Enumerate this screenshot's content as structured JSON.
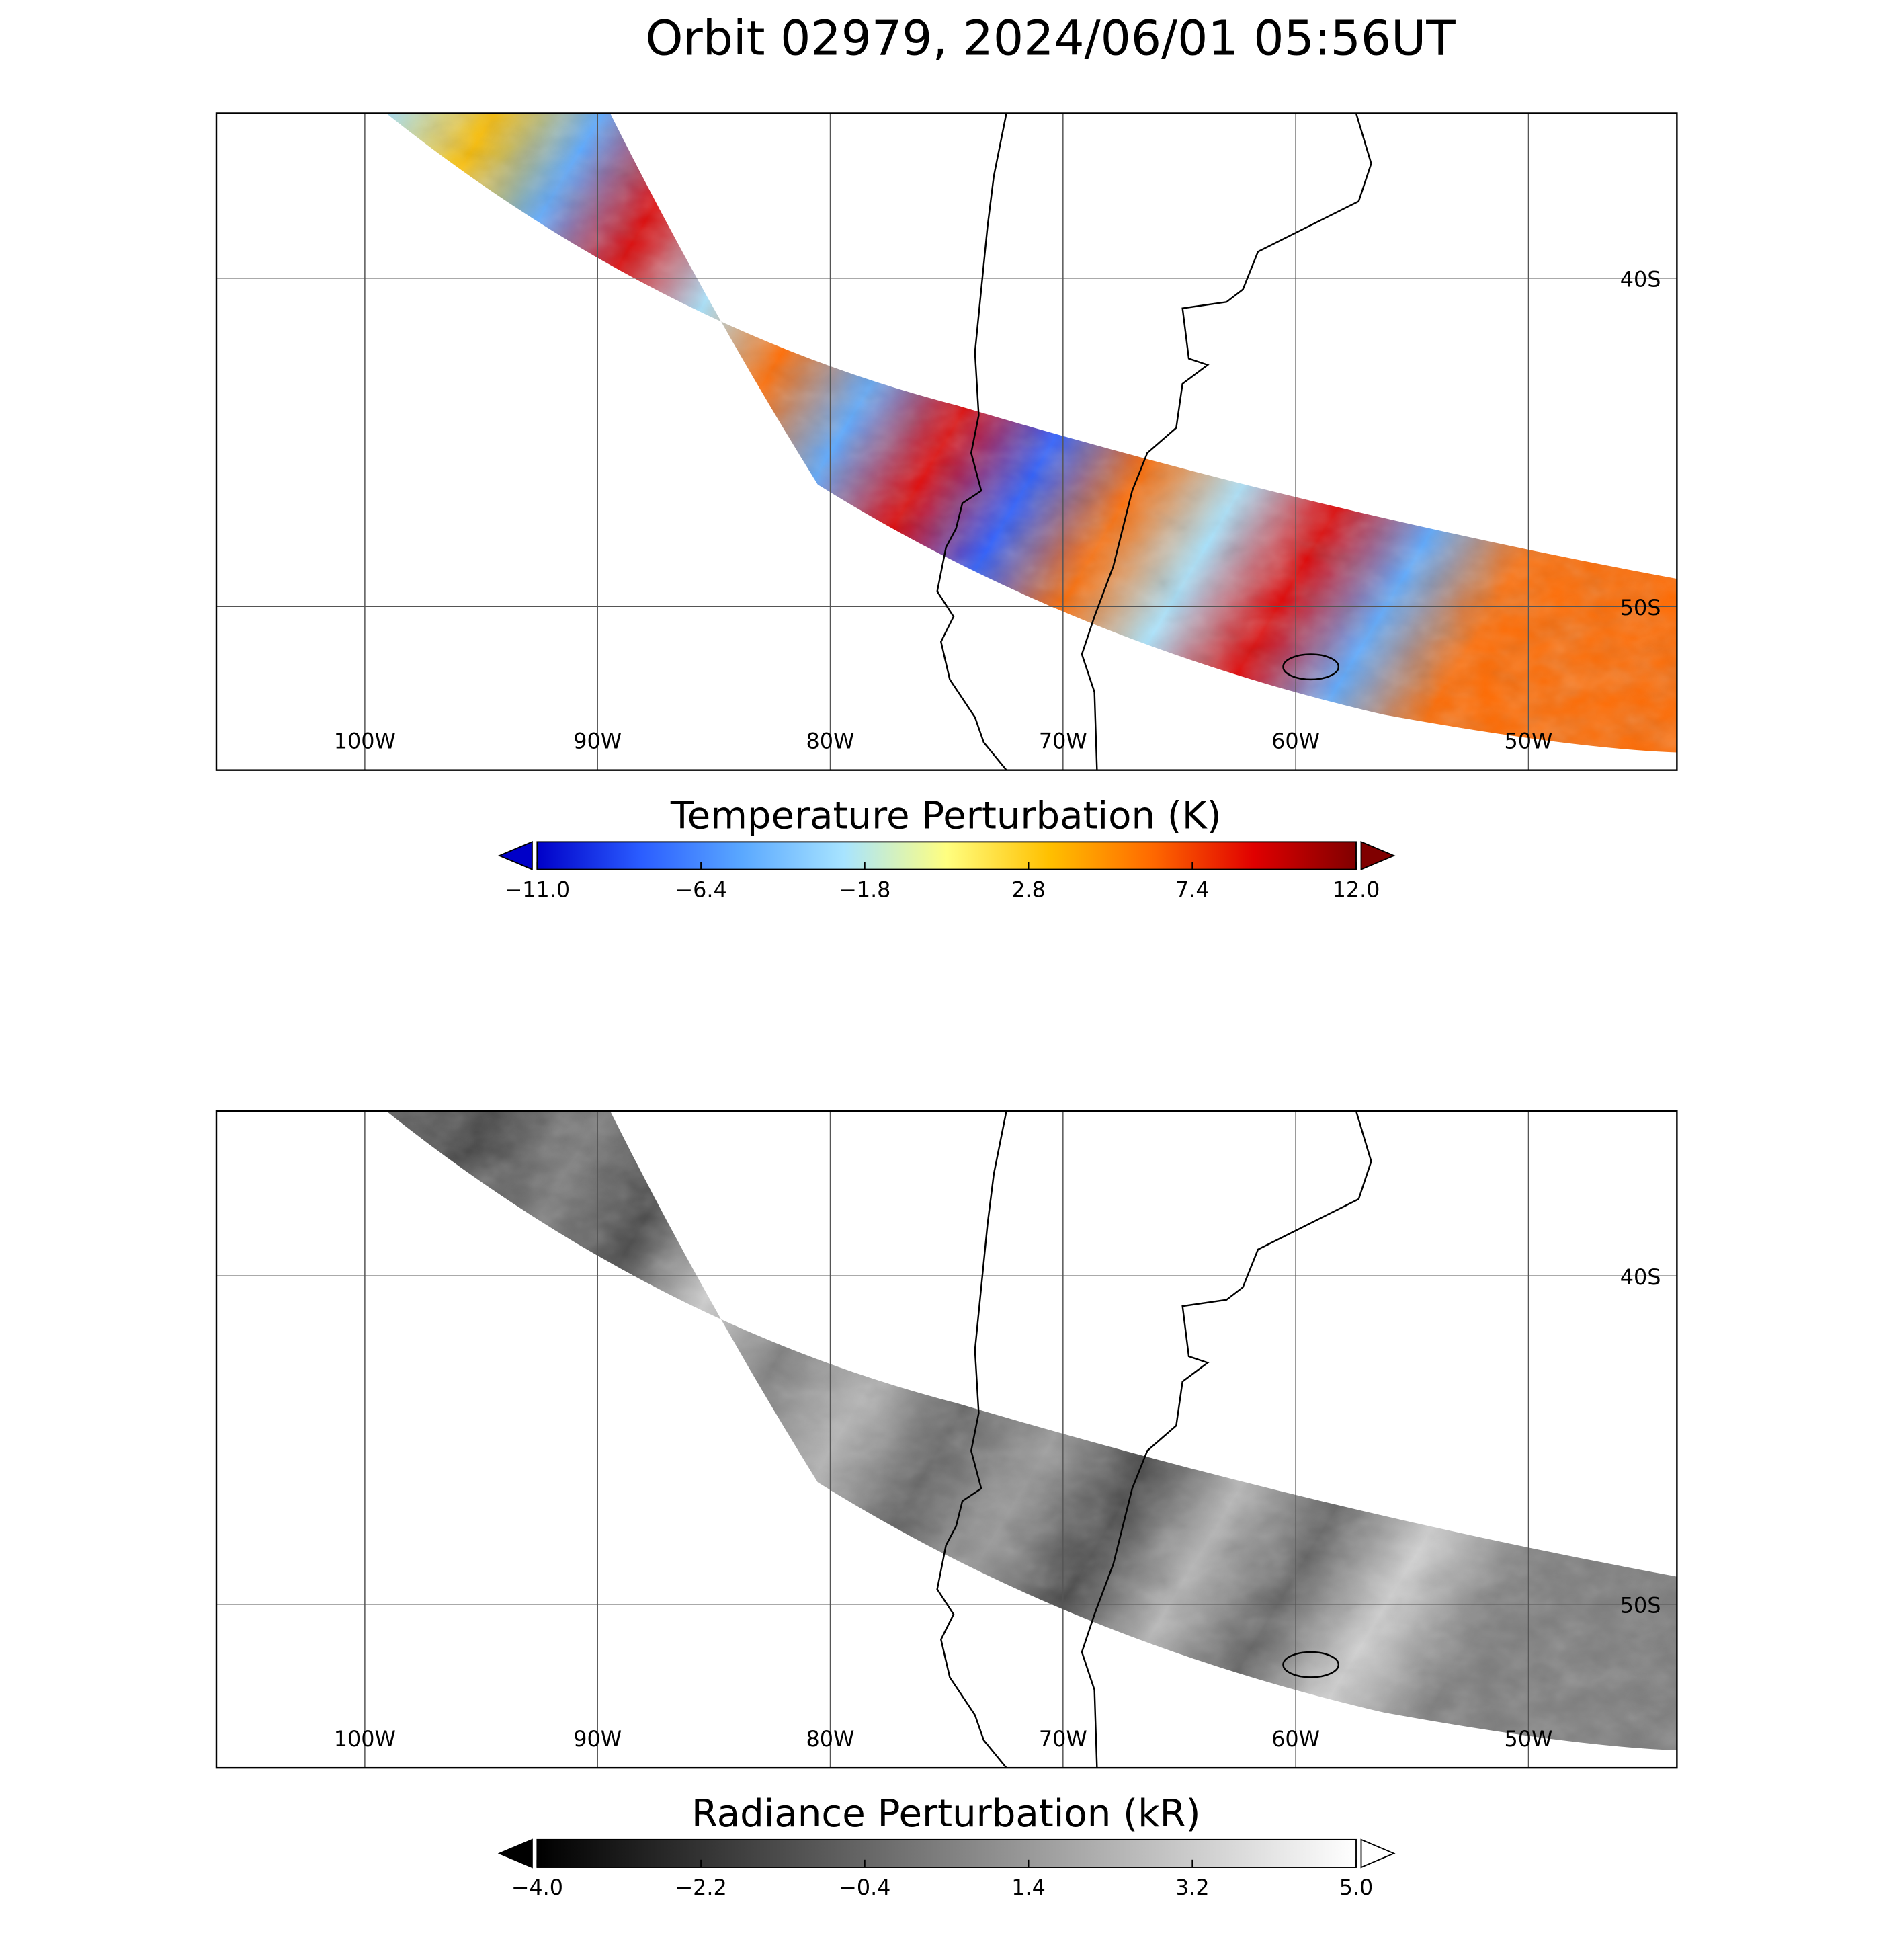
{
  "title": "Orbit 02979, 2024/06/01 05:56UT",
  "panels": [
    {
      "lon_labels": [
        "100W",
        "90W",
        "80W",
        "70W",
        "60W",
        "50W"
      ],
      "lat_labels": [
        "40S",
        "50S"
      ],
      "colorbar": {
        "title": "Temperature Perturbation (K)",
        "range": [
          -11,
          12
        ],
        "colors": [
          "#0000c8",
          "#2a5cff",
          "#5aa8ff",
          "#a8e4ff",
          "#fffe80",
          "#ffc000",
          "#ff6a00",
          "#e00000",
          "#800000"
        ],
        "ticks": [
          {
            "value": -11,
            "label": "−11.0"
          },
          {
            "value": -6.4,
            "label": "−6.4"
          },
          {
            "value": -1.8,
            "label": "−1.8"
          },
          {
            "value": 2.8,
            "label": "2.8"
          },
          {
            "value": 7.4,
            "label": "7.4"
          },
          {
            "value": 12,
            "label": "12.0"
          }
        ]
      }
    },
    {
      "lon_labels": [
        "100W",
        "90W",
        "80W",
        "70W",
        "60W",
        "50W"
      ],
      "lat_labels": [
        "40S",
        "50S"
      ],
      "colorbar": {
        "title": "Radiance Perturbation (kR)",
        "range": [
          -4,
          5
        ],
        "colors": [
          "#000000",
          "#ffffff"
        ],
        "ticks": [
          {
            "value": -4,
            "label": "−4.0"
          },
          {
            "value": -2.2,
            "label": "−2.2"
          },
          {
            "value": -0.4,
            "label": "−0.4"
          },
          {
            "value": 1.4,
            "label": "1.4"
          },
          {
            "value": 3.2,
            "label": "3.2"
          },
          {
            "value": 5,
            "label": "5.0"
          }
        ]
      }
    }
  ]
}
